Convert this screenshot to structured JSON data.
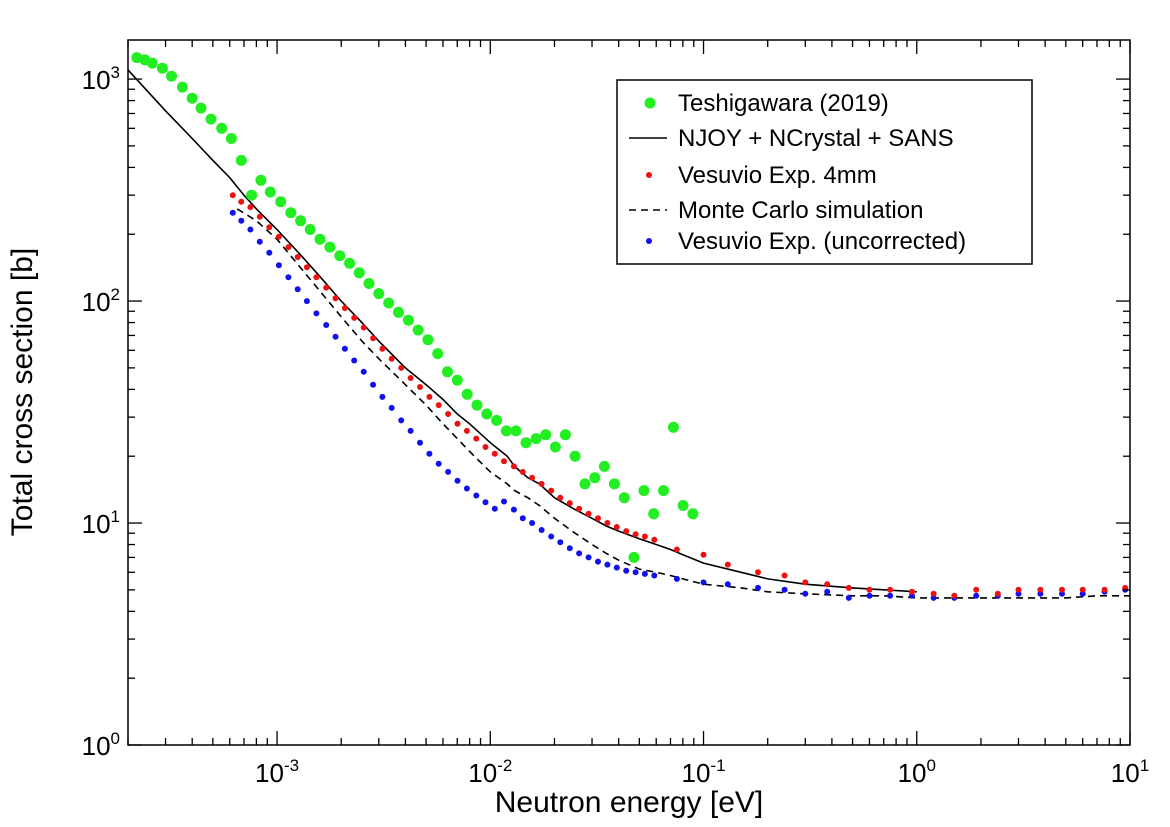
{
  "chart_data": {
    "type": "scatter",
    "title": "",
    "xlabel": "Neutron energy [eV]",
    "ylabel": "Total cross section [b]",
    "xscale": "log",
    "yscale": "log",
    "xlim": [
      0.0002,
      10
    ],
    "ylim": [
      1,
      1500
    ],
    "legend_position": "top-right",
    "x_ticks": [
      {
        "base": "10",
        "exp": "-3",
        "value": 0.001
      },
      {
        "base": "10",
        "exp": "-2",
        "value": 0.01
      },
      {
        "base": "10",
        "exp": "-1",
        "value": 0.1
      },
      {
        "base": "10",
        "exp": "0",
        "value": 1
      },
      {
        "base": "10",
        "exp": "1",
        "value": 10
      }
    ],
    "y_ticks": [
      {
        "base": "10",
        "exp": "0",
        "value": 1
      },
      {
        "base": "10",
        "exp": "1",
        "value": 10
      },
      {
        "base": "10",
        "exp": "2",
        "value": 100
      },
      {
        "base": "10",
        "exp": "3",
        "value": 1000
      }
    ],
    "series": [
      {
        "name": "Teshigawara (2019)",
        "kind": "points",
        "color": "#22ee22",
        "marker_size": "large",
        "x": [
          0.00022,
          0.00024,
          0.00026,
          0.00029,
          0.00032,
          0.00036,
          0.0004,
          0.00044,
          0.00049,
          0.00055,
          0.00061,
          0.00068,
          0.00076,
          0.00084,
          0.00093,
          0.00104,
          0.00116,
          0.00129,
          0.00143,
          0.00159,
          0.00177,
          0.00197,
          0.00219,
          0.00243,
          0.0027,
          0.003,
          0.00334,
          0.00371,
          0.00413,
          0.00459,
          0.0051,
          0.00567,
          0.0063,
          0.007,
          0.00779,
          0.00866,
          0.00963,
          0.0107,
          0.0119,
          0.0132,
          0.0147,
          0.0164,
          0.0182,
          0.0202,
          0.0225,
          0.025,
          0.0278,
          0.0309,
          0.0343,
          0.0382,
          0.0425,
          0.0472,
          0.0525,
          0.0584,
          0.0649,
          0.0722,
          0.0802,
          0.0892
        ],
        "y": [
          1250,
          1220,
          1180,
          1120,
          1030,
          920,
          820,
          740,
          660,
          600,
          540,
          430,
          300,
          350,
          310,
          280,
          250,
          230,
          210,
          190,
          175,
          160,
          148,
          134,
          120,
          108,
          98,
          89,
          82,
          74,
          67,
          58,
          48,
          44,
          38,
          34,
          31,
          29,
          26,
          26,
          23,
          24,
          25,
          22,
          25,
          20,
          15,
          16,
          18,
          15,
          13,
          7,
          14,
          11,
          14,
          27,
          12,
          11
        ]
      },
      {
        "name": "NJOY + NCrystal + SANS",
        "kind": "line",
        "dash": "solid",
        "color": "#000000",
        "x": [
          0.0002,
          0.0003,
          0.0004,
          0.0005,
          0.0006,
          0.0007,
          0.0008,
          0.001,
          0.0013,
          0.0016,
          0.002,
          0.0025,
          0.003,
          0.004,
          0.005,
          0.006,
          0.007,
          0.008,
          0.01,
          0.012,
          0.013,
          0.015,
          0.017,
          0.02,
          0.025,
          0.03,
          0.035,
          0.04,
          0.05,
          0.06,
          0.07,
          0.08,
          0.1,
          0.15,
          0.2,
          0.3,
          0.5,
          0.7,
          1.0
        ],
        "y": [
          1100,
          720,
          540,
          430,
          360,
          300,
          260,
          210,
          160,
          128,
          100,
          80,
          66,
          50,
          42,
          36,
          31,
          28,
          23,
          20,
          18,
          16,
          15,
          13,
          11.5,
          10.5,
          9.7,
          9.2,
          8.5,
          8.0,
          7.6,
          7.2,
          6.6,
          6.0,
          5.6,
          5.3,
          5.1,
          5.0,
          4.9
        ]
      },
      {
        "name": "Vesuvio Exp. 4mm",
        "kind": "points",
        "color": "#ee1111",
        "marker_size": "small",
        "x": [
          0.00062,
          0.00068,
          0.00075,
          0.00083,
          0.00092,
          0.00102,
          0.00113,
          0.00125,
          0.00138,
          0.00153,
          0.0017,
          0.00188,
          0.00208,
          0.0023,
          0.00255,
          0.00282,
          0.00312,
          0.00345,
          0.00382,
          0.00423,
          0.00468,
          0.00518,
          0.00573,
          0.00634,
          0.00702,
          0.00777,
          0.0086,
          0.0095,
          0.0105,
          0.0116,
          0.0129,
          0.0142,
          0.0157,
          0.0174,
          0.0193,
          0.0213,
          0.0236,
          0.0261,
          0.0289,
          0.032,
          0.0354,
          0.0392,
          0.0434,
          0.048,
          0.0531,
          0.0588,
          0.075,
          0.1,
          0.13,
          0.18,
          0.24,
          0.3,
          0.38,
          0.48,
          0.6,
          0.75,
          0.95,
          1.2,
          1.5,
          1.9,
          2.4,
          3.0,
          3.8,
          4.8,
          6.0,
          7.6,
          9.5
        ],
        "y": [
          300,
          280,
          265,
          240,
          215,
          195,
          175,
          158,
          142,
          128,
          115,
          103,
          93,
          84,
          76,
          68,
          61,
          55,
          50,
          45,
          41,
          37,
          34,
          31,
          28,
          26,
          24,
          22,
          20.5,
          19,
          18,
          17,
          16,
          15,
          14,
          13,
          12.3,
          11.6,
          11,
          10.5,
          10,
          9.6,
          9.2,
          8.9,
          8.7,
          8.4,
          7.6,
          7.2,
          6.5,
          6.0,
          5.8,
          5.4,
          5.3,
          5.1,
          5.0,
          5.0,
          4.9,
          4.8,
          4.7,
          5.0,
          4.8,
          5.0,
          5.0,
          5.0,
          5.0,
          5.0,
          5.1
        ]
      },
      {
        "name": "Monte Carlo simulation",
        "kind": "line",
        "dash": "dashed",
        "color": "#000000",
        "x": [
          0.00065,
          0.0008,
          0.001,
          0.0013,
          0.0016,
          0.002,
          0.0025,
          0.003,
          0.004,
          0.005,
          0.006,
          0.007,
          0.008,
          0.01,
          0.012,
          0.013,
          0.015,
          0.017,
          0.02,
          0.025,
          0.03,
          0.035,
          0.04,
          0.05,
          0.06,
          0.07,
          0.08,
          0.1,
          0.15,
          0.2,
          0.3,
          0.5,
          0.7,
          1.0,
          1.5,
          2.0,
          3.0,
          4.0,
          5.0,
          7.0,
          10.0
        ],
        "y": [
          260,
          230,
          190,
          140,
          110,
          85,
          66,
          55,
          42,
          34,
          28,
          24,
          21,
          17,
          15,
          14,
          13,
          12,
          10.5,
          9.0,
          8.0,
          7.3,
          6.8,
          6.2,
          6.0,
          5.8,
          5.6,
          5.3,
          5.1,
          4.9,
          4.8,
          4.7,
          4.7,
          4.6,
          4.6,
          4.6,
          4.6,
          4.6,
          4.6,
          4.7,
          4.7
        ]
      },
      {
        "name": "Vesuvio Exp. (uncorrected)",
        "kind": "points",
        "color": "#1111ee",
        "marker_size": "small",
        "x": [
          0.00062,
          0.00068,
          0.00075,
          0.00083,
          0.00092,
          0.00102,
          0.00113,
          0.00125,
          0.00138,
          0.00153,
          0.0017,
          0.00188,
          0.00208,
          0.0023,
          0.00255,
          0.00282,
          0.00312,
          0.00345,
          0.00382,
          0.00423,
          0.00468,
          0.00518,
          0.00573,
          0.00634,
          0.00702,
          0.00777,
          0.0086,
          0.0095,
          0.0105,
          0.0116,
          0.0129,
          0.0142,
          0.0157,
          0.0174,
          0.0193,
          0.0213,
          0.0236,
          0.0261,
          0.0289,
          0.032,
          0.0354,
          0.0392,
          0.0434,
          0.048,
          0.0531,
          0.0588,
          0.075,
          0.1,
          0.13,
          0.18,
          0.24,
          0.3,
          0.38,
          0.48,
          0.6,
          0.75,
          0.95,
          1.2,
          1.5,
          1.9,
          2.4,
          3.0,
          3.8,
          4.8,
          6.0,
          7.6,
          9.5
        ],
        "y": [
          250,
          230,
          210,
          185,
          165,
          145,
          128,
          113,
          100,
          88,
          78,
          69,
          61,
          54,
          48,
          42,
          37,
          33,
          29,
          26,
          23,
          20.5,
          18.5,
          17,
          15.5,
          14.3,
          13.3,
          12.4,
          11.6,
          12.5,
          11.5,
          10.5,
          10,
          9.3,
          8.7,
          8.2,
          7.7,
          7.3,
          7.0,
          6.7,
          6.5,
          6.3,
          6.1,
          6.0,
          5.9,
          5.8,
          5.6,
          5.4,
          5.3,
          5.1,
          5.0,
          4.8,
          4.9,
          4.6,
          4.7,
          4.7,
          4.7,
          4.6,
          4.6,
          4.7,
          4.7,
          4.8,
          4.8,
          4.8,
          4.8,
          4.9,
          5.0
        ]
      }
    ]
  }
}
